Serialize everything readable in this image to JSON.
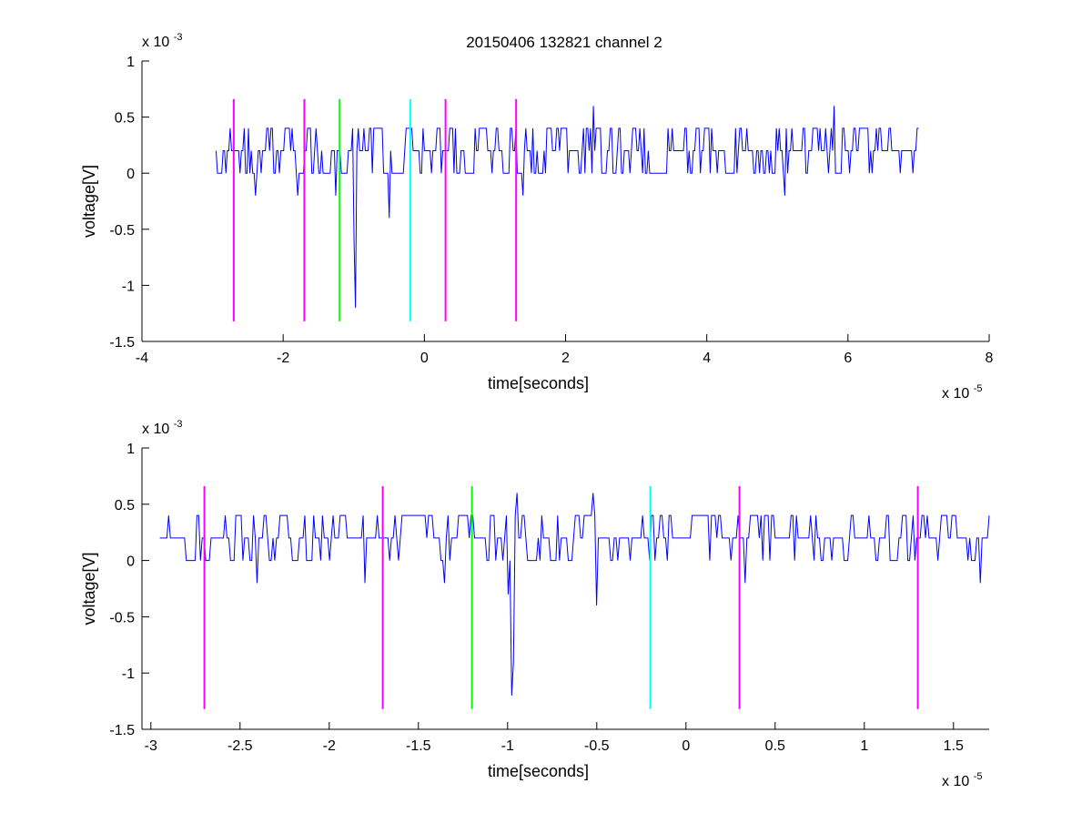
{
  "figure": {
    "title": "20150406 132821 channel 2",
    "colors": {
      "signal": "#0000ff",
      "magenta": "#ff00ff",
      "green": "#00ff00",
      "cyan": "#00ffff",
      "axis": "#000000",
      "background": "#ffffff"
    }
  },
  "chart_data": [
    {
      "type": "line",
      "title": "20150406 132821 channel 2",
      "xlabel": "time[seconds]",
      "ylabel": "voltage[V]",
      "x_exponent_label": "x 10",
      "x_exponent": "-5",
      "y_exponent_label": "x 10",
      "y_exponent": "-3",
      "xlim": [
        -4e-05,
        8e-05
      ],
      "ylim": [
        -0.0015,
        0.001
      ],
      "x_ticks": [
        -4,
        -2,
        0,
        2,
        4,
        6,
        8
      ],
      "y_ticks": [
        1,
        0.5,
        0,
        -0.5,
        -1,
        -1.5
      ],
      "x_tick_scale": 1e-05,
      "y_tick_scale": 0.001,
      "grid": false,
      "legend": "none",
      "series": [
        {
          "color": "#0000ff",
          "x_start": -2.95e-05,
          "x_end": 7e-05,
          "samples": 500,
          "baseline_levels": [
            0.0,
            0.0002,
            0.0004
          ],
          "spikes": [
            {
              "x": -2.4e-05,
              "y": -0.0002
            },
            {
              "x": -1.8e-05,
              "y": -0.0002
            },
            {
              "x": -1.25e-05,
              "y": -0.0002
            },
            {
              "x": -1e-05,
              "y": -0.0006
            },
            {
              "x": -9.7e-06,
              "y": -0.0012
            },
            {
              "x": -5e-06,
              "y": -0.0004
            },
            {
              "x": 1.4e-05,
              "y": -0.0002
            },
            {
              "x": 2.4e-05,
              "y": 0.0006
            },
            {
              "x": 5.8e-05,
              "y": 0.0006
            },
            {
              "x": 5.1e-05,
              "y": -0.0002
            }
          ]
        }
      ],
      "markers": [
        {
          "x": -2.7e-05,
          "color": "#ff00ff",
          "y_top": 0.00066,
          "y_bottom": -0.00132
        },
        {
          "x": -1.7e-05,
          "color": "#ff00ff",
          "y_top": 0.00066,
          "y_bottom": -0.00132
        },
        {
          "x": -1.2e-05,
          "color": "#00ff00",
          "y_top": 0.00066,
          "y_bottom": -0.00132
        },
        {
          "x": -2e-06,
          "color": "#00ffff",
          "y_top": 0.00066,
          "y_bottom": -0.00132
        },
        {
          "x": 3e-06,
          "color": "#ff00ff",
          "y_top": 0.00066,
          "y_bottom": -0.00132
        },
        {
          "x": 1.3e-05,
          "color": "#ff00ff",
          "y_top": 0.00066,
          "y_bottom": -0.00132
        }
      ]
    },
    {
      "type": "line",
      "xlabel": "time[seconds]",
      "ylabel": "voltage[V]",
      "x_exponent_label": "x 10",
      "x_exponent": "-5",
      "y_exponent_label": "x 10",
      "y_exponent": "-3",
      "xlim": [
        -3.05e-05,
        1.7e-05
      ],
      "ylim": [
        -0.0015,
        0.001
      ],
      "x_ticks": [
        -3,
        -2.5,
        -2,
        -1.5,
        -1,
        -0.5,
        0,
        0.5,
        1,
        1.5
      ],
      "y_ticks": [
        1,
        0.5,
        0,
        -0.5,
        -1,
        -1.5
      ],
      "x_tick_scale": 1e-05,
      "y_tick_scale": 0.001,
      "grid": false,
      "legend": "none",
      "series": [
        {
          "color": "#0000ff",
          "x_start": -2.95e-05,
          "x_end": 1.7e-05,
          "samples": 470,
          "baseline_levels": [
            0.0,
            0.0002,
            0.0004
          ],
          "spikes": [
            {
              "x": -2.4e-05,
              "y": -0.0002
            },
            {
              "x": -1.8e-05,
              "y": -0.0002
            },
            {
              "x": -1.35e-05,
              "y": -0.0002
            },
            {
              "x": -1e-05,
              "y": -0.0003
            },
            {
              "x": -9.8e-06,
              "y": -0.0012
            },
            {
              "x": -9.7e-06,
              "y": -0.0009
            },
            {
              "x": -9.5e-06,
              "y": 0.0006
            },
            {
              "x": -5e-06,
              "y": -0.0004
            },
            {
              "x": -5.2e-06,
              "y": 0.0006
            },
            {
              "x": 3.3e-06,
              "y": -0.0002
            },
            {
              "x": 1.65e-05,
              "y": -0.0002
            },
            {
              "x": 1.7e-05,
              "y": 0.0004
            }
          ]
        }
      ],
      "markers": [
        {
          "x": -2.7e-05,
          "color": "#ff00ff",
          "y_top": 0.00066,
          "y_bottom": -0.00132
        },
        {
          "x": -1.7e-05,
          "color": "#ff00ff",
          "y_top": 0.00066,
          "y_bottom": -0.00132
        },
        {
          "x": -1.2e-05,
          "color": "#00ff00",
          "y_top": 0.00066,
          "y_bottom": -0.00132
        },
        {
          "x": -2e-06,
          "color": "#00ffff",
          "y_top": 0.00066,
          "y_bottom": -0.00132
        },
        {
          "x": 3e-06,
          "color": "#ff00ff",
          "y_top": 0.00066,
          "y_bottom": -0.00132
        },
        {
          "x": 1.3e-05,
          "color": "#ff00ff",
          "y_top": 0.00066,
          "y_bottom": -0.00132
        }
      ]
    }
  ]
}
